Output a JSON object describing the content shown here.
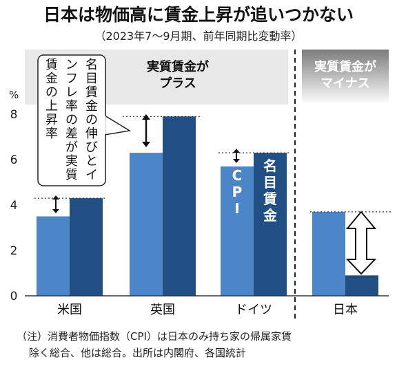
{
  "title": "日本は物価高に賃金上昇が追いつかない",
  "subtitle": "（2023年7～9月期、前年同期比変動率）",
  "note_line1": "（注）消費者物価指数（CPI）は日本のみ持ち家の帰属家賃",
  "note_line2": "除く総合、他は総合。出所は内閣府、各国統計",
  "colors": {
    "cpi": "#4a86c8",
    "wage": "#214f84",
    "panel_plus": "#e8e8e8",
    "panel_minus": "#8f8f8f"
  },
  "chart_data": {
    "type": "bar",
    "ylabel": "%",
    "ylim": [
      0,
      8.8
    ],
    "yticks": [
      "0",
      "2",
      "4",
      "6",
      "8"
    ],
    "categories": [
      "米国",
      "英国",
      "ドイツ",
      "日本"
    ],
    "series": [
      {
        "name": "CPI",
        "values": [
          3.5,
          6.3,
          5.7,
          3.7
        ]
      },
      {
        "name": "名目賃金",
        "values": [
          4.3,
          7.9,
          6.3,
          0.9
        ]
      }
    ],
    "annotations": {
      "plus_header": [
        "実質賃金が",
        "プラス"
      ],
      "minus_header": [
        "実質賃金が",
        "マイナス"
      ],
      "explain_box": [
        "名目",
        "賃金",
        "の伸",
        "びとイ",
        "ンフレ",
        "率の差",
        "が実質",
        "賃金の",
        "上昇率"
      ],
      "explain_text": "名目賃金の伸びとインフレ率の差が実質賃金の上昇率",
      "cpi_label": "CPI",
      "wage_label": "名目賃金"
    }
  }
}
